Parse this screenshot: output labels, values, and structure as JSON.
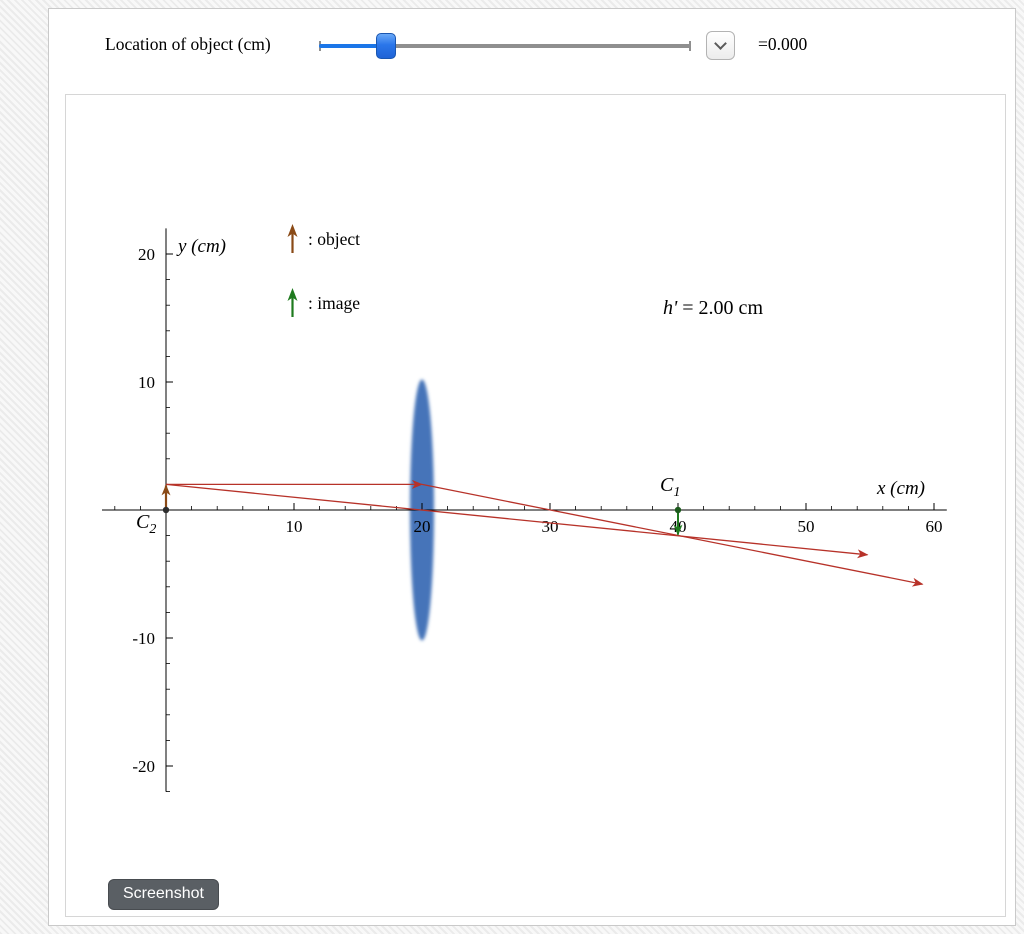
{
  "controls": {
    "label": "Location of object (cm)",
    "value_display": "=0.000",
    "slider": {
      "fraction": 0.18
    }
  },
  "screenshot_button": "Screenshot",
  "plot": {
    "x_axis": {
      "label": "x (cm)",
      "range": [
        -5,
        61
      ],
      "major_ticks": [
        10,
        20,
        30,
        40,
        50,
        60
      ],
      "minor_step": 2
    },
    "y_axis": {
      "label": "y (cm)",
      "range": [
        -22,
        22
      ],
      "major_ticks": [
        20,
        10,
        -10,
        -20
      ],
      "minor_step": 2
    },
    "lens": {
      "x": 20,
      "half_height": 10.2,
      "half_width": 0.94,
      "color": "#3c6eb5"
    },
    "object": {
      "x": 0,
      "height": 2,
      "color": "#8a4a16"
    },
    "image": {
      "x": 40,
      "height": -2,
      "color": "#1e7a1e"
    },
    "h_label": {
      "var": "h'",
      "rest": "= 2.00 cm"
    },
    "points": [
      {
        "x": 0,
        "y": 0,
        "label_main": "C",
        "label_sub": "2",
        "color": "#2d2d2d"
      },
      {
        "x": 40,
        "y": 0,
        "label_main": "C",
        "label_sub": "1",
        "color": "#1c5a1c"
      }
    ],
    "rays": {
      "color": "#b73229",
      "a": [
        [
          0,
          2
        ],
        [
          20,
          2
        ],
        [
          59.1,
          -5.8
        ]
      ],
      "b": [
        [
          0,
          2
        ],
        [
          54.8,
          -3.5
        ]
      ]
    },
    "legend": [
      {
        "label": ": object",
        "color": "#8a4a16"
      },
      {
        "label": ": image",
        "color": "#1e7a1e"
      }
    ]
  }
}
